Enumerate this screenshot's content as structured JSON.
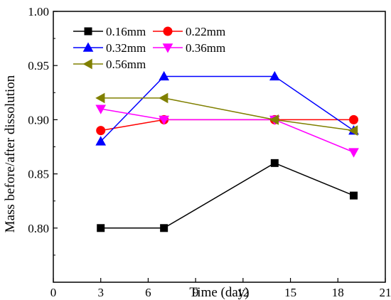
{
  "chart_data": {
    "type": "line",
    "title": "",
    "xlabel": "Time (day)",
    "ylabel": "Mass before/after dissolution",
    "xlim": [
      0,
      21
    ],
    "ylim": [
      0.75,
      1.0
    ],
    "x_ticks": [
      0,
      3,
      6,
      9,
      12,
      15,
      18,
      21
    ],
    "x_tick_labels": [
      "0",
      "3",
      "6",
      "9",
      "12",
      "15",
      "18",
      "21"
    ],
    "y_ticks": [
      0.8,
      0.85,
      0.9,
      0.95,
      1.0
    ],
    "y_tick_labels": [
      "0.80",
      "0.85",
      "0.90",
      "0.95",
      "1.00"
    ],
    "grid": false,
    "legend_position": "top-left",
    "x": [
      3,
      7,
      14,
      19
    ],
    "series": [
      {
        "name": "0.16mm",
        "values": [
          0.8,
          0.8,
          0.86,
          0.83
        ],
        "color": "#000000",
        "marker": "square"
      },
      {
        "name": "0.22mm",
        "values": [
          0.89,
          0.9,
          0.9,
          0.9
        ],
        "color": "#ff0000",
        "marker": "circle"
      },
      {
        "name": "0.32mm",
        "values": [
          0.88,
          0.94,
          0.94,
          0.89
        ],
        "color": "#0000ff",
        "marker": "triangle-up"
      },
      {
        "name": "0.36mm",
        "values": [
          0.91,
          0.9,
          0.9,
          0.87
        ],
        "color": "#ff00ff",
        "marker": "triangle-down"
      },
      {
        "name": "0.56mm",
        "values": [
          0.92,
          0.92,
          0.9,
          0.89
        ],
        "color": "#808000",
        "marker": "triangle-left"
      }
    ]
  }
}
